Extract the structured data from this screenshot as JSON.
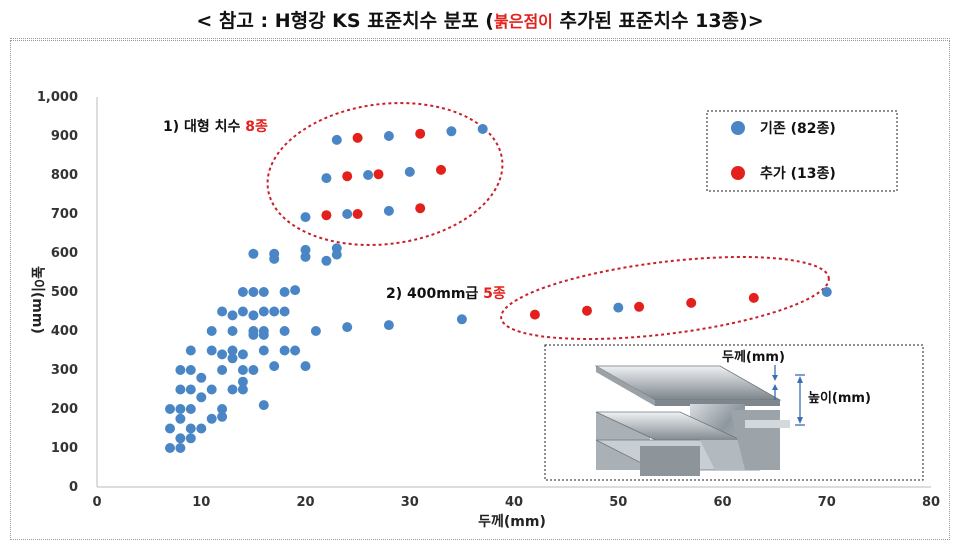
{
  "title": {
    "prefix": "< 참고 : H형강 KS 표준치수 분포 (",
    "highlight": "붉은점이",
    "suffix": " 추가된 표준치수 13종)>"
  },
  "colors": {
    "existing": "#4a86c5",
    "added": "#e3201b",
    "ellipse": "#c8202a"
  },
  "annotations": {
    "group1_prefix": "1) 대형 치수 ",
    "group1_highlight": "8종",
    "group2_prefix": "2) 400mm급 ",
    "group2_highlight": "5종"
  },
  "inset": {
    "thickness_label": "두께(mm)",
    "height_label": "높이(mm)"
  },
  "chart_data": {
    "type": "scatter",
    "xlabel": "두께(mm)",
    "ylabel": "높이(mm)",
    "xlim": [
      0,
      80
    ],
    "ylim": [
      0,
      1000
    ],
    "xticks": [
      0,
      10,
      20,
      30,
      40,
      50,
      60,
      70,
      80
    ],
    "yticks": [
      0,
      100,
      200,
      300,
      400,
      500,
      600,
      700,
      800,
      900,
      1000
    ],
    "ytick_labels": [
      "0",
      "100",
      "200",
      "300",
      "400",
      "500",
      "600",
      "700",
      "800",
      "900",
      "1,000"
    ],
    "grid": false,
    "legend_position": "top-right",
    "series": [
      {
        "name": "기존 (82종)",
        "color": "#4a86c5",
        "points": [
          [
            7,
            100
          ],
          [
            8,
            100
          ],
          [
            7,
            150
          ],
          [
            8,
            125
          ],
          [
            9,
            125
          ],
          [
            7,
            200
          ],
          [
            8,
            175
          ],
          [
            8,
            200
          ],
          [
            9,
            200
          ],
          [
            9,
            150
          ],
          [
            10,
            150
          ],
          [
            11,
            175
          ],
          [
            12,
            200
          ],
          [
            8,
            250
          ],
          [
            9,
            250
          ],
          [
            8,
            300
          ],
          [
            9,
            300
          ],
          [
            9,
            350
          ],
          [
            11,
            250
          ],
          [
            12,
            300
          ],
          [
            11,
            350
          ],
          [
            12,
            340
          ],
          [
            13,
            350
          ],
          [
            13,
            250
          ],
          [
            14,
            250
          ],
          [
            14,
            300
          ],
          [
            15,
            300
          ],
          [
            13,
            330
          ],
          [
            14,
            340
          ],
          [
            11,
            400
          ],
          [
            13,
            400
          ],
          [
            15,
            400
          ],
          [
            16,
            400
          ],
          [
            12,
            450
          ],
          [
            14,
            450
          ],
          [
            16,
            450
          ],
          [
            14,
            500
          ],
          [
            15,
            500
          ],
          [
            16,
            500
          ],
          [
            18,
            500
          ],
          [
            19,
            505
          ],
          [
            17,
            450
          ],
          [
            18,
            450
          ],
          [
            15,
            440
          ],
          [
            15,
            390
          ],
          [
            16,
            390
          ],
          [
            16,
            350
          ],
          [
            18,
            400
          ],
          [
            17,
            310
          ],
          [
            18,
            350
          ],
          [
            19,
            350
          ],
          [
            20,
            310
          ],
          [
            16,
            210
          ],
          [
            21,
            400
          ],
          [
            24,
            410
          ],
          [
            28,
            415
          ],
          [
            35,
            430
          ],
          [
            50,
            460
          ],
          [
            70,
            500
          ],
          [
            15,
            598
          ],
          [
            17,
            598
          ],
          [
            17,
            585
          ],
          [
            20,
            608
          ],
          [
            20,
            590
          ],
          [
            23,
            612
          ],
          [
            23,
            596
          ],
          [
            20,
            692
          ],
          [
            24,
            700
          ],
          [
            28,
            708
          ],
          [
            22,
            792
          ],
          [
            26,
            800
          ],
          [
            30,
            808
          ],
          [
            23,
            890
          ],
          [
            28,
            900
          ],
          [
            34,
            912
          ],
          [
            37,
            918
          ],
          [
            14,
            270
          ],
          [
            12,
            180
          ],
          [
            10,
            230
          ],
          [
            10,
            280
          ],
          [
            13,
            440
          ],
          [
            22,
            580
          ]
        ]
      },
      {
        "name": "추가 (13종)",
        "color": "#e3201b",
        "points": [
          [
            25,
            895
          ],
          [
            31,
            906
          ],
          [
            24,
            797
          ],
          [
            27,
            802
          ],
          [
            33,
            813
          ],
          [
            22,
            697
          ],
          [
            25,
            700
          ],
          [
            31,
            715
          ],
          [
            42,
            442
          ],
          [
            47,
            452
          ],
          [
            52,
            462
          ],
          [
            57,
            472
          ],
          [
            63,
            485
          ]
        ]
      }
    ]
  }
}
